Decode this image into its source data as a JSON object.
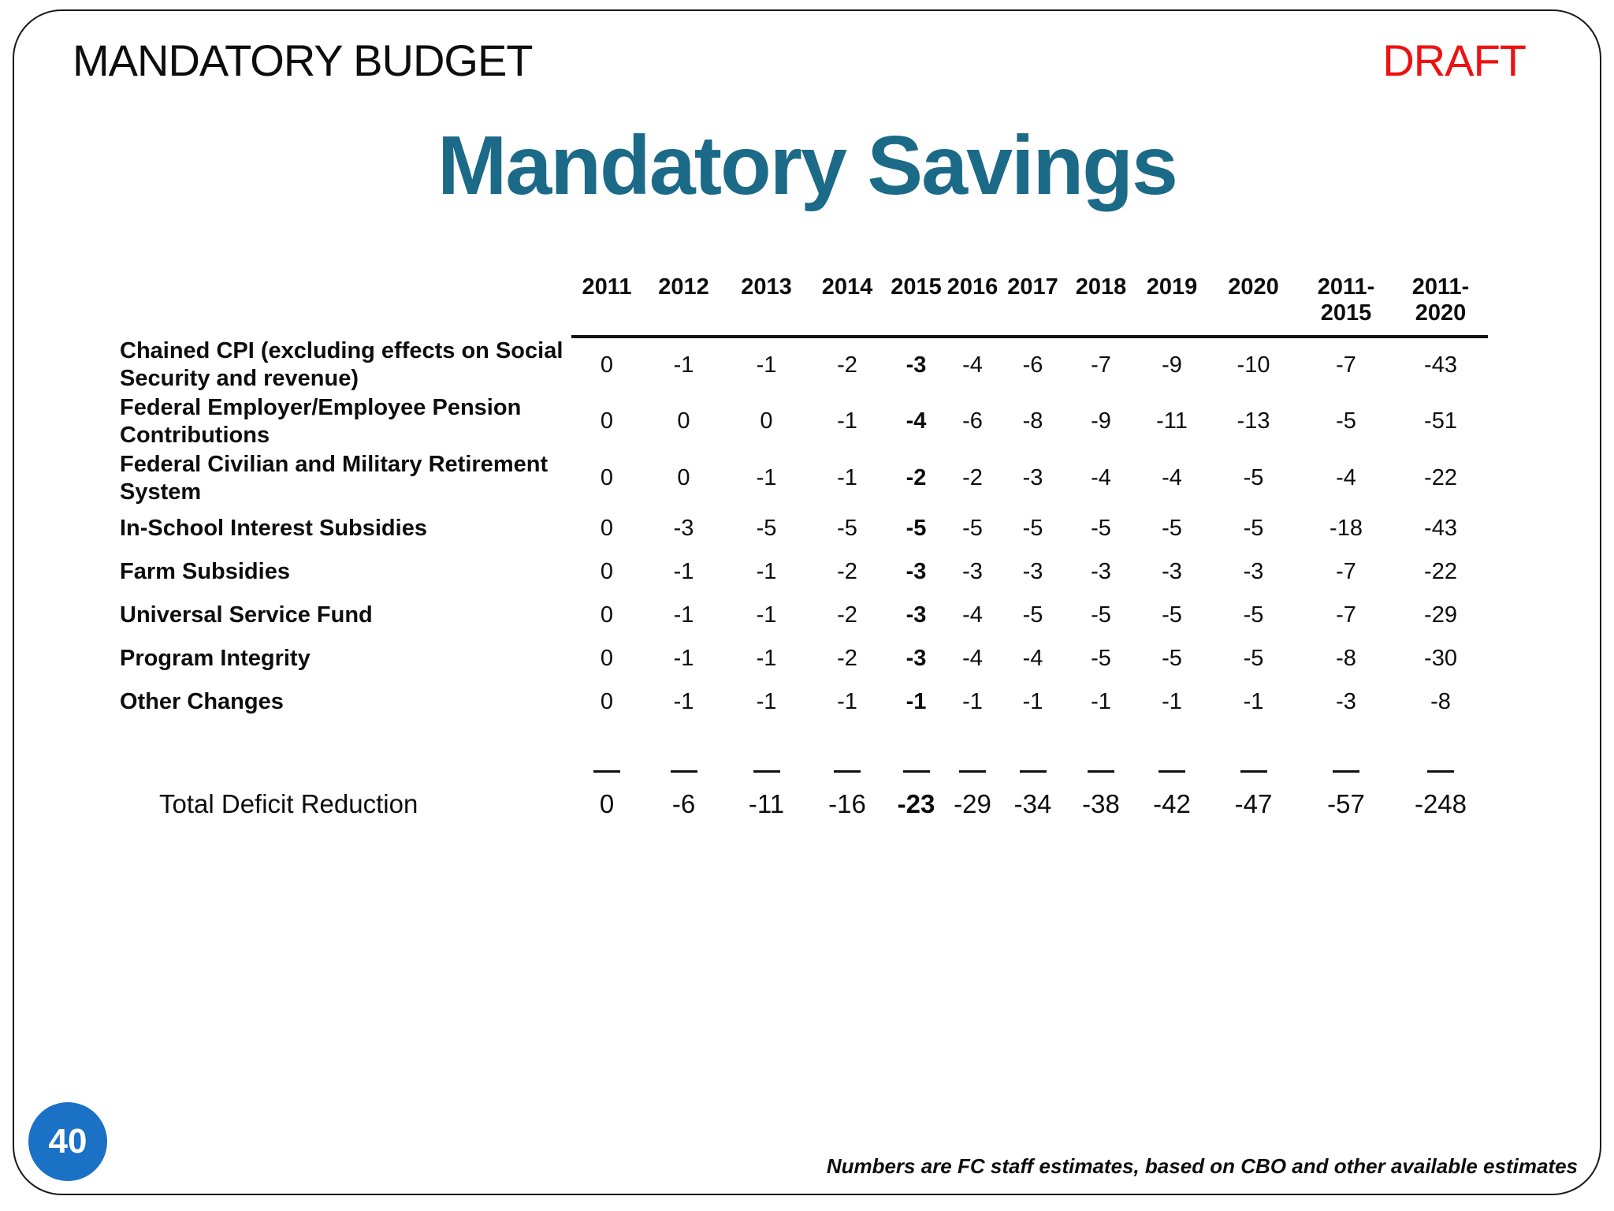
{
  "slide": {
    "header_title": "MANDATORY BUDGET",
    "draft_label": "DRAFT",
    "title": "Mandatory Savings",
    "page_number": "40",
    "footnote": "Numbers are FC staff estimates, based on CBO and other available estimates"
  },
  "colors": {
    "title_teal": "#1b6a87",
    "draft_red": "#ee1111",
    "page_circle_blue": "#1a71c6"
  },
  "table": {
    "columns": [
      "2011",
      "2012",
      "2013",
      "2014",
      "2015",
      "2016",
      "2017",
      "2018",
      "2019",
      "2020",
      "2011-2015",
      "2011-2020"
    ],
    "bold_column_index": 4,
    "rows": [
      {
        "label": "Chained CPI (excluding effects on Social Security and revenue)",
        "values": [
          "0",
          "-1",
          "-1",
          "-2",
          "-3",
          "-4",
          "-6",
          "-7",
          "-9",
          "-10",
          "-7",
          "-43"
        ]
      },
      {
        "label": "Federal Employer/Employee Pension Contributions",
        "values": [
          "0",
          "0",
          "0",
          "-1",
          "-4",
          "-6",
          "-8",
          "-9",
          "-11",
          "-13",
          "-5",
          "-51"
        ]
      },
      {
        "label": "Federal Civilian and Military Retirement System",
        "values": [
          "0",
          "0",
          "-1",
          "-1",
          "-2",
          "-2",
          "-3",
          "-4",
          "-4",
          "-5",
          "-4",
          "-22"
        ]
      },
      {
        "label": "In-School Interest Subsidies",
        "values": [
          "0",
          "-3",
          "-5",
          "-5",
          "-5",
          "-5",
          "-5",
          "-5",
          "-5",
          "-5",
          "-18",
          "-43"
        ]
      },
      {
        "label": "Farm Subsidies",
        "values": [
          "0",
          "-1",
          "-1",
          "-2",
          "-3",
          "-3",
          "-3",
          "-3",
          "-3",
          "-3",
          "-7",
          "-22"
        ]
      },
      {
        "label": "Universal Service Fund",
        "values": [
          "0",
          "-1",
          "-1",
          "-2",
          "-3",
          "-4",
          "-5",
          "-5",
          "-5",
          "-5",
          "-7",
          "-29"
        ]
      },
      {
        "label": "Program Integrity",
        "values": [
          "0",
          "-1",
          "-1",
          "-2",
          "-3",
          "-4",
          "-4",
          "-5",
          "-5",
          "-5",
          "-8",
          "-30"
        ]
      },
      {
        "label": "Other Changes",
        "values": [
          "0",
          "-1",
          "-1",
          "-1",
          "-1",
          "-1",
          "-1",
          "-1",
          "-1",
          "-1",
          "-3",
          "-8"
        ]
      }
    ],
    "total": {
      "label": "Total Deficit Reduction",
      "values": [
        "0",
        "-6",
        "-11",
        "-16",
        "-23",
        "-29",
        "-34",
        "-38",
        "-42",
        "-47",
        "-57",
        "-248"
      ]
    }
  }
}
